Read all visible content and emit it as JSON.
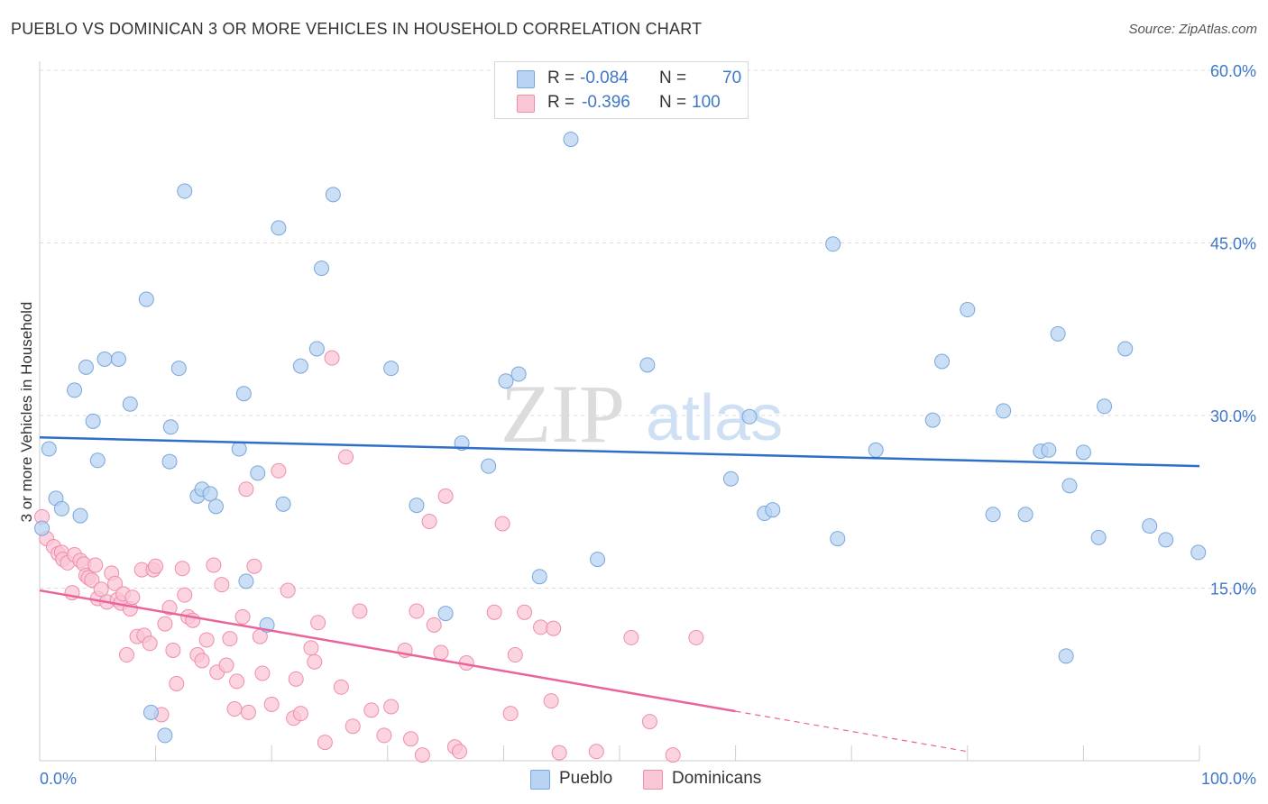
{
  "header": {
    "title": "PUEBLO VS DOMINICAN 3 OR MORE VEHICLES IN HOUSEHOLD CORRELATION CHART",
    "source": "Source: ZipAtlas.com"
  },
  "watermark": {
    "zip": "ZIP",
    "atlas": "atlas"
  },
  "colors": {
    "pueblo_fill": "#b8d3f3",
    "pueblo_stroke": "#7aa6da",
    "pueblo_line": "#2f6fc8",
    "dominican_fill": "#f9c6d5",
    "dominican_stroke": "#ee8eab",
    "dominican_line": "#e8649a",
    "accent_text": "#3e77c9",
    "grid": "#dddddd"
  },
  "legend": {
    "rows": [
      {
        "r_label": "R =",
        "r_value": "-0.084",
        "n_label": "N =",
        "n_value": "70"
      },
      {
        "r_label": "R =",
        "r_value": "-0.396",
        "n_label": "N =",
        "n_value": "100"
      }
    ]
  },
  "bottom_legend": {
    "pueblo": "Pueblo",
    "dominicans": "Dominicans"
  },
  "chart_data": {
    "type": "scatter",
    "title": "PUEBLO VS DOMINICAN 3 OR MORE VEHICLES IN HOUSEHOLD CORRELATION CHART",
    "xlabel": "",
    "ylabel": "3 or more Vehicles in Household",
    "x_range": [
      0,
      100
    ],
    "y_range": [
      0,
      60
    ],
    "x_tick_labels": [
      "0.0%",
      "100.0%"
    ],
    "y_ticks": [
      15,
      30,
      45,
      60
    ],
    "y_tick_labels": [
      "15.0%",
      "30.0%",
      "45.0%",
      "60.0%"
    ],
    "grid": true,
    "legend_position": "top-center",
    "series": [
      {
        "name": "Pueblo",
        "r": -0.084,
        "n": 70,
        "trend": {
          "x": [
            0,
            100
          ],
          "y": [
            28.1,
            25.6
          ]
        },
        "points": [
          [
            0.2,
            20.2
          ],
          [
            0.8,
            27.1
          ],
          [
            1.4,
            22.8
          ],
          [
            1.9,
            21.9
          ],
          [
            3.0,
            32.2
          ],
          [
            3.5,
            21.3
          ],
          [
            4.0,
            34.2
          ],
          [
            4.6,
            29.5
          ],
          [
            5.0,
            26.1
          ],
          [
            5.6,
            34.9
          ],
          [
            6.8,
            34.9
          ],
          [
            7.8,
            31.0
          ],
          [
            9.2,
            40.1
          ],
          [
            9.6,
            4.2
          ],
          [
            10.8,
            2.2
          ],
          [
            11.2,
            26.0
          ],
          [
            11.3,
            29.0
          ],
          [
            12.0,
            34.1
          ],
          [
            12.5,
            49.5
          ],
          [
            13.6,
            23.0
          ],
          [
            14.0,
            23.6
          ],
          [
            14.7,
            23.2
          ],
          [
            15.2,
            22.1
          ],
          [
            17.2,
            27.1
          ],
          [
            17.6,
            31.9
          ],
          [
            17.8,
            15.6
          ],
          [
            18.8,
            25.0
          ],
          [
            19.6,
            11.8
          ],
          [
            20.6,
            46.3
          ],
          [
            21.0,
            22.3
          ],
          [
            22.5,
            34.3
          ],
          [
            23.9,
            35.8
          ],
          [
            24.3,
            42.8
          ],
          [
            25.3,
            49.2
          ],
          [
            30.3,
            34.1
          ],
          [
            32.5,
            22.2
          ],
          [
            35.0,
            12.8
          ],
          [
            36.4,
            27.6
          ],
          [
            38.7,
            25.6
          ],
          [
            40.2,
            33.0
          ],
          [
            41.3,
            33.6
          ],
          [
            43.1,
            16.0
          ],
          [
            45.8,
            54.0
          ],
          [
            48.1,
            17.5
          ],
          [
            52.4,
            34.4
          ],
          [
            59.6,
            24.5
          ],
          [
            61.2,
            29.9
          ],
          [
            62.5,
            21.5
          ],
          [
            63.2,
            21.8
          ],
          [
            68.4,
            44.9
          ],
          [
            68.8,
            19.3
          ],
          [
            72.1,
            27.0
          ],
          [
            77.0,
            29.6
          ],
          [
            77.8,
            34.7
          ],
          [
            80.0,
            39.2
          ],
          [
            82.2,
            21.4
          ],
          [
            83.1,
            30.4
          ],
          [
            85.0,
            21.4
          ],
          [
            86.3,
            26.9
          ],
          [
            87.0,
            27.0
          ],
          [
            87.8,
            37.1
          ],
          [
            88.5,
            9.1
          ],
          [
            88.8,
            23.9
          ],
          [
            90.0,
            26.8
          ],
          [
            91.3,
            19.4
          ],
          [
            91.8,
            30.8
          ],
          [
            93.6,
            35.8
          ],
          [
            95.7,
            20.4
          ],
          [
            97.1,
            19.2
          ],
          [
            99.9,
            18.1
          ]
        ]
      },
      {
        "name": "Dominicans",
        "r": -0.396,
        "n": 100,
        "trend": {
          "x": [
            0,
            60
          ],
          "y": [
            14.8,
            4.3
          ]
        },
        "trend_dashed": {
          "x": [
            60,
            80
          ],
          "y": [
            4.3,
            0.8
          ]
        },
        "points": [
          [
            0.2,
            21.2
          ],
          [
            0.6,
            19.3
          ],
          [
            1.2,
            18.6
          ],
          [
            1.6,
            18.0
          ],
          [
            1.9,
            18.1
          ],
          [
            2.0,
            17.5
          ],
          [
            2.4,
            17.2
          ],
          [
            2.8,
            14.6
          ],
          [
            3.0,
            17.9
          ],
          [
            3.5,
            17.4
          ],
          [
            3.8,
            17.1
          ],
          [
            4.0,
            16.1
          ],
          [
            4.2,
            15.9
          ],
          [
            4.5,
            15.7
          ],
          [
            4.8,
            17.0
          ],
          [
            5.0,
            14.1
          ],
          [
            5.3,
            14.9
          ],
          [
            5.8,
            13.8
          ],
          [
            6.2,
            16.3
          ],
          [
            6.5,
            15.4
          ],
          [
            6.7,
            14.0
          ],
          [
            7.0,
            13.7
          ],
          [
            7.2,
            14.5
          ],
          [
            7.5,
            9.2
          ],
          [
            7.8,
            13.2
          ],
          [
            8.0,
            14.2
          ],
          [
            8.4,
            10.8
          ],
          [
            8.8,
            16.6
          ],
          [
            9.0,
            10.9
          ],
          [
            9.5,
            10.2
          ],
          [
            9.8,
            16.6
          ],
          [
            10.0,
            16.9
          ],
          [
            10.5,
            4.0
          ],
          [
            10.8,
            11.9
          ],
          [
            11.2,
            13.3
          ],
          [
            11.5,
            9.6
          ],
          [
            11.8,
            6.7
          ],
          [
            12.3,
            16.7
          ],
          [
            12.5,
            14.4
          ],
          [
            12.8,
            12.5
          ],
          [
            13.2,
            12.2
          ],
          [
            13.6,
            9.2
          ],
          [
            14.0,
            8.7
          ],
          [
            14.4,
            10.5
          ],
          [
            15.0,
            17.0
          ],
          [
            15.3,
            7.7
          ],
          [
            15.7,
            15.3
          ],
          [
            16.1,
            8.3
          ],
          [
            16.4,
            10.6
          ],
          [
            16.8,
            4.5
          ],
          [
            17.0,
            6.9
          ],
          [
            17.5,
            12.5
          ],
          [
            17.8,
            23.6
          ],
          [
            18.0,
            4.2
          ],
          [
            18.5,
            16.9
          ],
          [
            19.0,
            10.8
          ],
          [
            19.2,
            7.6
          ],
          [
            20.0,
            4.9
          ],
          [
            20.6,
            25.2
          ],
          [
            21.4,
            14.8
          ],
          [
            21.9,
            3.7
          ],
          [
            22.1,
            7.1
          ],
          [
            22.5,
            4.1
          ],
          [
            23.4,
            9.8
          ],
          [
            23.7,
            8.6
          ],
          [
            24.0,
            12.0
          ],
          [
            24.6,
            1.6
          ],
          [
            25.2,
            35.0
          ],
          [
            26.0,
            6.4
          ],
          [
            26.4,
            26.4
          ],
          [
            27.0,
            3.0
          ],
          [
            27.6,
            13.0
          ],
          [
            28.6,
            4.4
          ],
          [
            29.7,
            2.2
          ],
          [
            30.3,
            4.7
          ],
          [
            31.5,
            9.6
          ],
          [
            32.0,
            1.9
          ],
          [
            32.5,
            13.0
          ],
          [
            33.0,
            0.5
          ],
          [
            33.6,
            20.8
          ],
          [
            34.0,
            11.8
          ],
          [
            34.6,
            9.4
          ],
          [
            35.0,
            23.0
          ],
          [
            35.8,
            1.2
          ],
          [
            36.2,
            0.8
          ],
          [
            36.8,
            8.5
          ],
          [
            39.2,
            12.9
          ],
          [
            39.9,
            20.6
          ],
          [
            40.6,
            4.1
          ],
          [
            41.0,
            9.2
          ],
          [
            41.8,
            12.9
          ],
          [
            43.2,
            11.6
          ],
          [
            44.1,
            5.2
          ],
          [
            44.3,
            11.5
          ],
          [
            44.8,
            0.7
          ],
          [
            51.0,
            10.7
          ],
          [
            48.0,
            0.8
          ],
          [
            52.6,
            3.4
          ],
          [
            54.6,
            0.5
          ],
          [
            56.6,
            10.7
          ]
        ]
      }
    ]
  }
}
